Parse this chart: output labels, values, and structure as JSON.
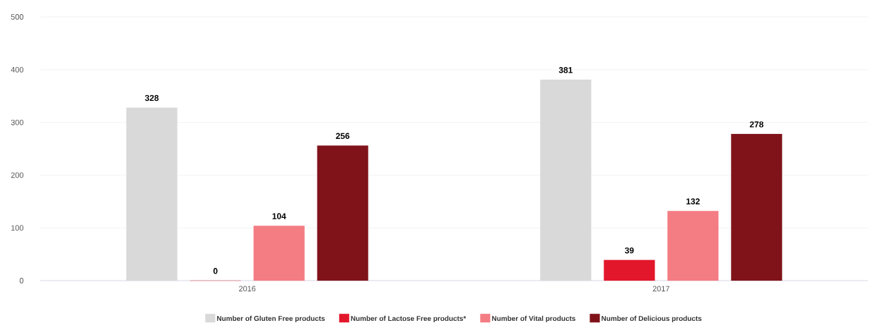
{
  "chart_data": {
    "type": "bar",
    "categories": [
      "2016",
      "2017"
    ],
    "series": [
      {
        "name": "Number of Gluten Free products",
        "color": "#d9d9d9",
        "values": [
          328,
          381
        ]
      },
      {
        "name": "Number of Lactose Free products*",
        "color": "#e3172b",
        "values": [
          0,
          39
        ]
      },
      {
        "name": "Number of Vital products",
        "color": "#f47c83",
        "values": [
          104,
          132
        ]
      },
      {
        "name": "Number of Delicious products",
        "color": "#80131a",
        "values": [
          256,
          278
        ]
      }
    ],
    "ylim": [
      0,
      500
    ],
    "yticks": [
      0,
      100,
      200,
      300,
      400,
      500
    ],
    "grid": "y",
    "legend": "bottom",
    "data_labels": true
  }
}
